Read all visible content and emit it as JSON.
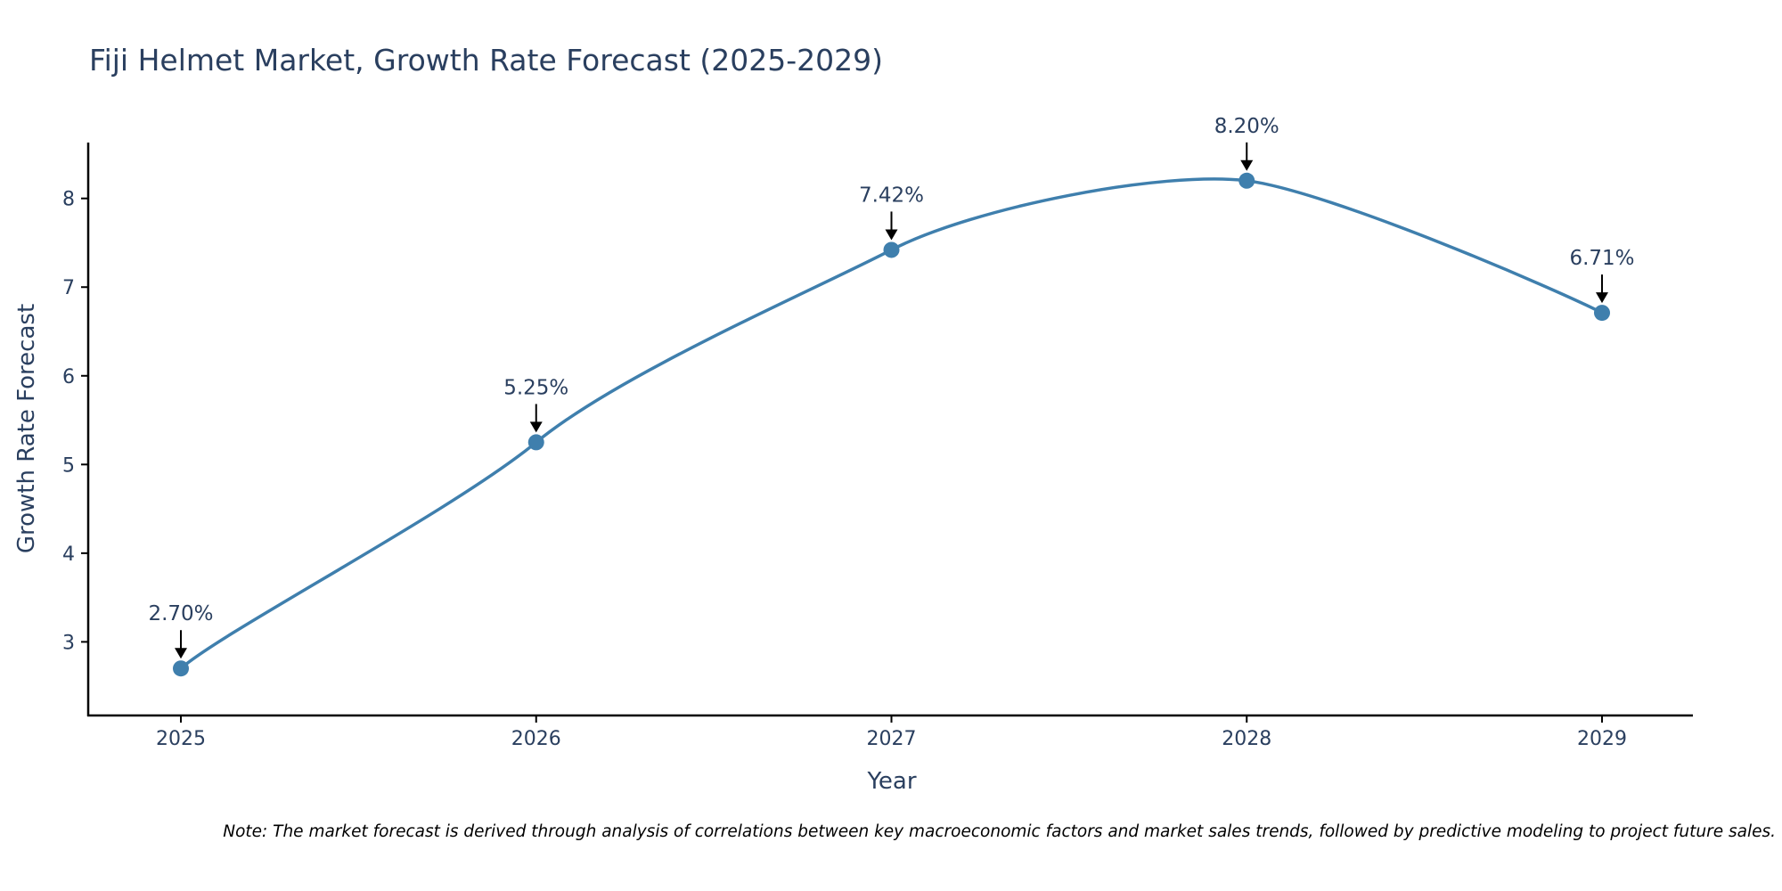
{
  "chart_data": {
    "type": "line",
    "title": "Fiji Helmet Market, Growth Rate Forecast (2025-2029)",
    "xlabel": "Year",
    "ylabel": "Growth Rate Forecast",
    "categories": [
      "2025",
      "2026",
      "2027",
      "2028",
      "2029"
    ],
    "values": [
      2.7,
      5.25,
      7.42,
      8.2,
      6.71
    ],
    "data_labels": [
      "2.70%",
      "5.25%",
      "7.42%",
      "8.20%",
      "6.71%"
    ],
    "y_ticks": [
      3,
      4,
      5,
      6,
      7,
      8
    ],
    "ylim": [
      2.17,
      8.63
    ],
    "grid": false,
    "legend": "none",
    "line_shape": "spline",
    "colors": {
      "line": "#3f7fad",
      "marker": "#3f7fad",
      "text": "#2a3f5f",
      "axis": "#000000",
      "annotation_text": "#2a3f5f",
      "arrow": "#000000"
    }
  },
  "footnote": "Note: The market forecast is derived through analysis of correlations between key macroeconomic factors and market sales trends, followed by predictive modeling to project future sales."
}
